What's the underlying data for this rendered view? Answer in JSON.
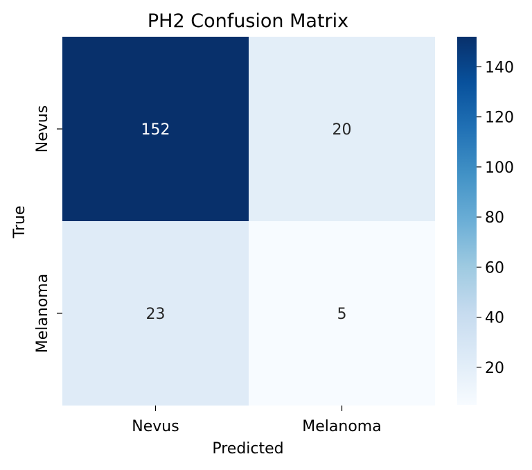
{
  "chart_data": {
    "type": "heatmap",
    "title": "PH2 Confusion Matrix",
    "xlabel": "Predicted",
    "ylabel": "True",
    "x_categories": [
      "Nevus",
      "Melanoma"
    ],
    "y_categories": [
      "Nevus",
      "Melanoma"
    ],
    "values": [
      [
        152,
        20
      ],
      [
        23,
        5
      ]
    ],
    "colormap": "Blues",
    "colorbar": {
      "min": 5,
      "max": 152,
      "ticks": [
        20,
        40,
        60,
        80,
        100,
        120,
        140
      ]
    },
    "grid": false,
    "legend": "colorbar-right"
  }
}
